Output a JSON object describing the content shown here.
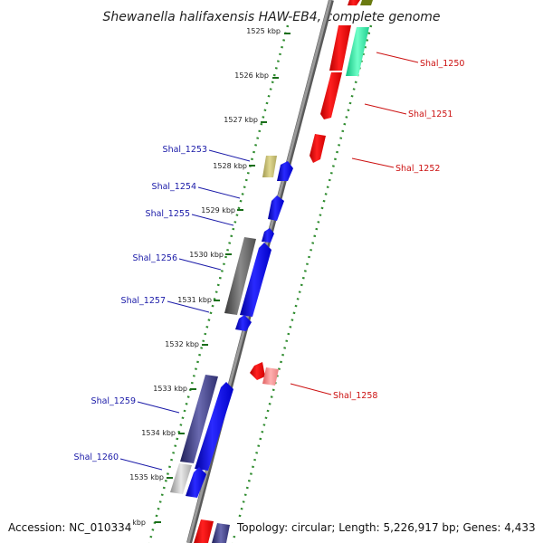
{
  "title": "Shewanella halifaxensis HAW-EB4, complete genome",
  "footer": {
    "accession": "Accession: NC_010334",
    "summary": "Topology: circular; Length: 5,226,917 bp; Genes: 4,433"
  },
  "ticks": [
    "1525 kbp",
    "1526 kbp",
    "1527 kbp",
    "1528 kbp",
    "1529 kbp",
    "1530 kbp",
    "1531 kbp",
    "1532 kbp",
    "1533 kbp",
    "1534 kbp",
    "1535 kbp",
    "1536 kbp"
  ],
  "colors": {
    "forward_label": "#1a1aa8",
    "reverse_label": "#cc1111",
    "backbone": "#7a7a7a",
    "ruler": "#2e8b2e"
  },
  "genes": [
    {
      "name": "Shal_1250",
      "strand": "reverse"
    },
    {
      "name": "Shal_1251",
      "strand": "reverse"
    },
    {
      "name": "Shal_1252",
      "strand": "reverse"
    },
    {
      "name": "Shal_1253",
      "strand": "forward"
    },
    {
      "name": "Shal_1254",
      "strand": "forward"
    },
    {
      "name": "Shal_1255",
      "strand": "forward"
    },
    {
      "name": "Shal_1256",
      "strand": "forward"
    },
    {
      "name": "Shal_1257",
      "strand": "forward"
    },
    {
      "name": "Shal_1258",
      "strand": "reverse"
    },
    {
      "name": "Shal_1259",
      "strand": "forward"
    },
    {
      "name": "Shal_1260",
      "strand": "forward"
    }
  ]
}
